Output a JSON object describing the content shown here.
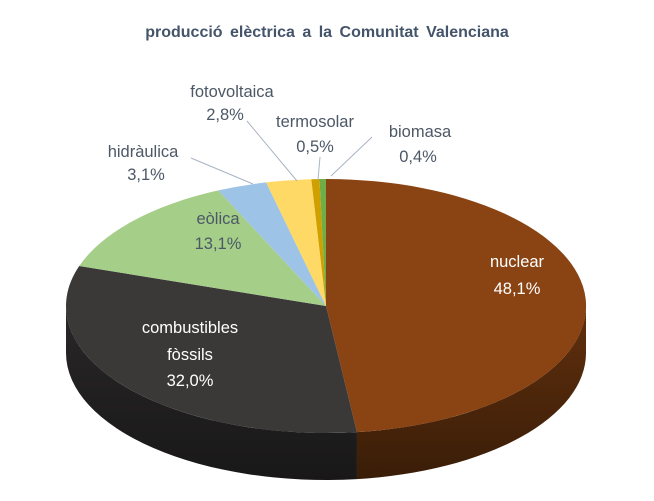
{
  "title": "producció elèctrica a la Comunitat Valenciana",
  "chart_data": {
    "type": "pie",
    "style": "3d-pie",
    "title": "producció elèctrica a la Comunitat Valenciana",
    "title_color": "#44546A",
    "legend": "none",
    "background_color": "#FFFFFF",
    "label_text_color": "#4C5866",
    "leader_line_color": "#A9B4C2",
    "start_angle_deg": 0,
    "direction": "clockwise",
    "slices": [
      {
        "label": "nuclear",
        "pct_label": "48,1%",
        "value": 48.1,
        "color": "#8A4413",
        "label_placement": "inside",
        "text_color": "#FFFFFF"
      },
      {
        "label": "combustibles fòssils",
        "pct_label": "32,0%",
        "value": 32.0,
        "color": "#3B3838",
        "label_placement": "inside",
        "text_color": "#FFFFFF"
      },
      {
        "label": "eòlica",
        "pct_label": "13,1%",
        "value": 13.1,
        "color": "#A5CE89",
        "label_placement": "inside",
        "text_color": "#4C5866"
      },
      {
        "label": "hidràulica",
        "pct_label": "3,1%",
        "value": 3.1,
        "color": "#9DC3E6",
        "label_placement": "outside",
        "text_color": "#4C5866"
      },
      {
        "label": "fotovoltaica",
        "pct_label": "2,8%",
        "value": 2.8,
        "color": "#FFD966",
        "label_placement": "outside",
        "text_color": "#4C5866"
      },
      {
        "label": "termosolar",
        "pct_label": "0,5%",
        "value": 0.5,
        "color": "#CFA000",
        "label_placement": "outside",
        "text_color": "#4C5866"
      },
      {
        "label": "biomasa",
        "pct_label": "0,4%",
        "value": 0.4,
        "color": "#70AD47",
        "label_placement": "outside",
        "text_color": "#4C5866"
      }
    ]
  }
}
